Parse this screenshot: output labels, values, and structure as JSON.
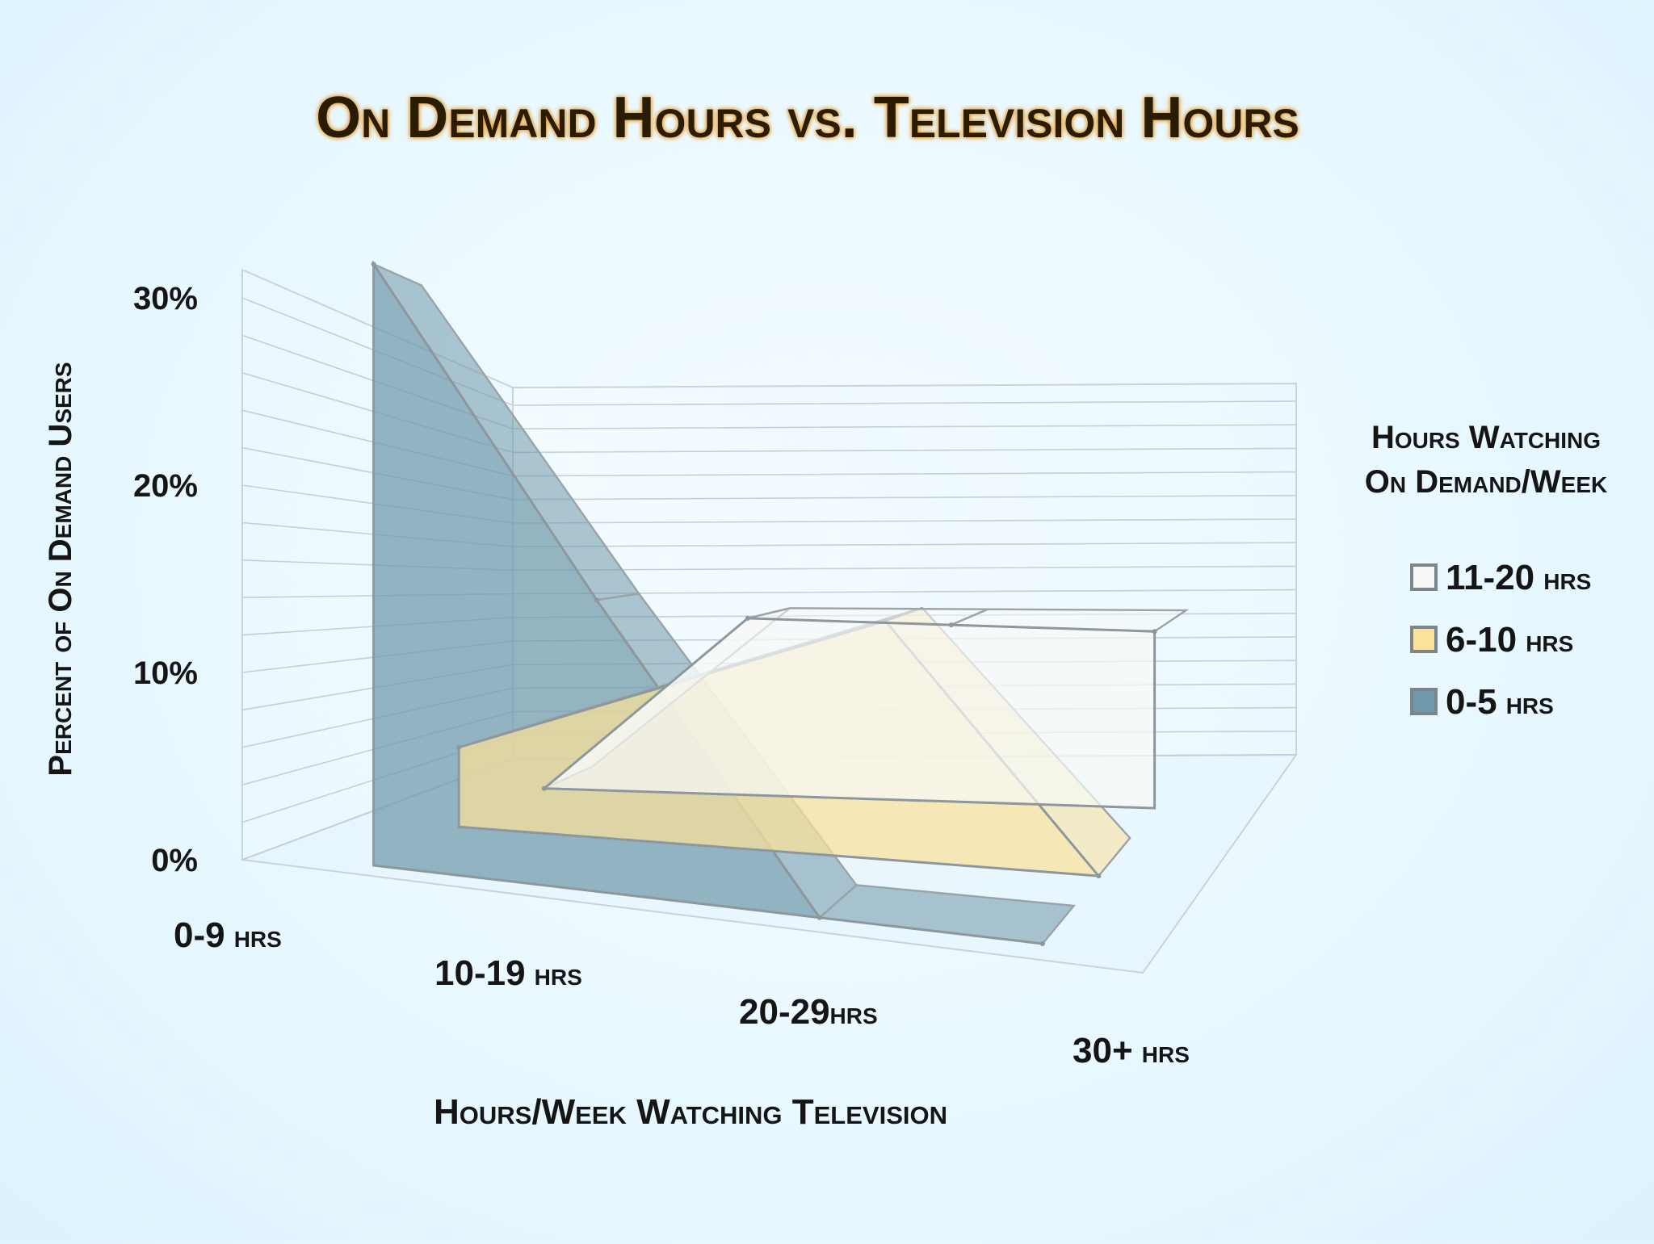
{
  "chart_data": {
    "type": "area",
    "title": "On Demand Hours vs. Television Hours",
    "ylabel": "Percent of On Demand Users",
    "xlabel": "Hours/Week Watching Television",
    "ylim": [
      0,
      30
    ],
    "yticks": [
      "0%",
      "10%",
      "20%",
      "30%"
    ],
    "ytick_values": [
      0,
      10,
      20,
      30
    ],
    "categories": [
      {
        "num": "0-9",
        "unit": " hrs"
      },
      {
        "num": "10-19",
        "unit": " hrs"
      },
      {
        "num": "20-29",
        "unit": "hrs"
      },
      {
        "num": "30+",
        "unit": " hrs"
      }
    ],
    "legend_title": [
      "Hours Watching",
      "On Demand/Week"
    ],
    "legend_position": "right",
    "series": [
      {
        "name_num": "11-20",
        "name_unit": " hrs",
        "color": "#f7f8f6",
        "values": [
          0,
          13,
          13,
          13
        ]
      },
      {
        "name_num": "6-10",
        "name_unit": " hrs",
        "color": "#fbe29a",
        "values": [
          5,
          10,
          15,
          0
        ]
      },
      {
        "name_num": "0-5",
        "name_unit": " hrs",
        "color": "#6f98aa",
        "values": [
          33,
          16,
          0,
          0
        ]
      }
    ]
  }
}
